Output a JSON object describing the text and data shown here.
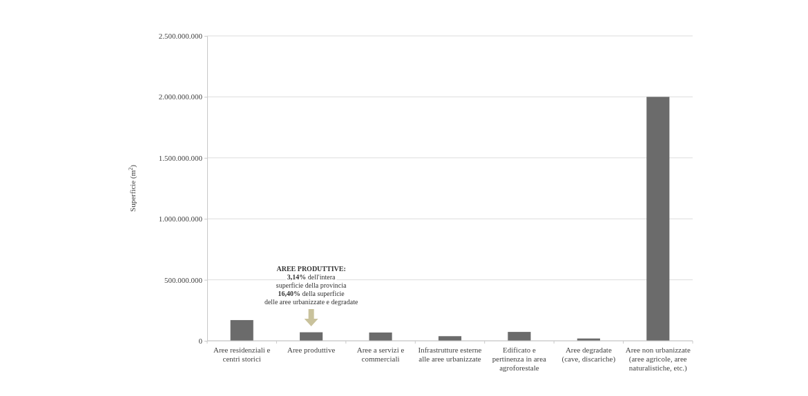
{
  "chart_data": {
    "type": "bar",
    "ylabel": "Superficie (m$^{2}$)",
    "categories": [
      "Aree residenziali e centri storici",
      "Aree produttive",
      "Aree a servizi e commerciali",
      "Infrastrutture esterne alle aree urbanizzate",
      "Edificato e pertinenza in area agroforestale",
      "Aree degradate (cave, discariche)",
      "Aree non urbanizzate (aree agricole, aree naturalistiche, etc.)"
    ],
    "values": [
      170000000,
      70000000,
      68000000,
      38000000,
      73000000,
      19000000,
      2000000000
    ],
    "color": "#6b6b6b",
    "ylim": [
      0,
      2500000000
    ],
    "yticks": [
      0,
      {
        "value": 500000000,
        "label": "500.000.000"
      },
      {
        "value": 1000000000,
        "label": "1.000.000.000"
      },
      {
        "value": 1500000000,
        "label": "1.500.000.000"
      },
      {
        "value": 2000000000,
        "label": "2.000.000.000"
      },
      {
        "value": 2500000000,
        "label": "2.500.000.000"
      }
    ],
    "grid": "y",
    "annotations": [
      "AREE PRODUTTIVE:\n3,14% dell'intera\nsuperficie della provincia\n16,40% della superficie\ndelle aree urbanizzate e degradate"
    ]
  }
}
